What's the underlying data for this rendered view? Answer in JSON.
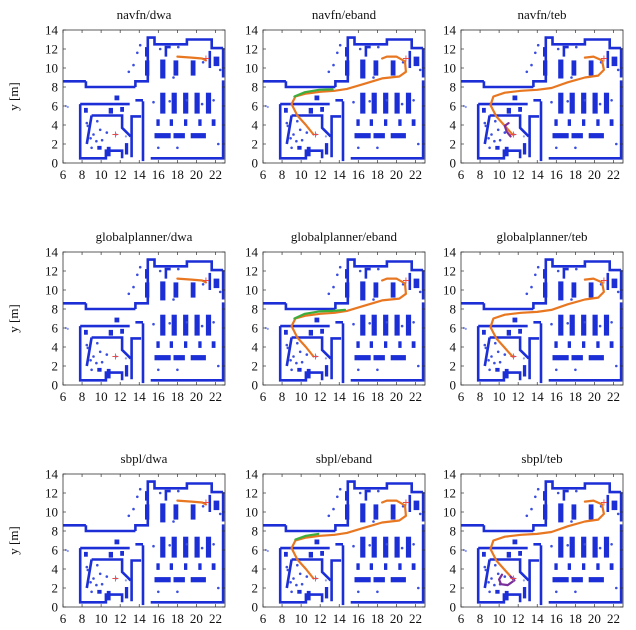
{
  "chart_data": [
    {
      "type": "line",
      "title": "navfn/dwa",
      "ylabel": "y [m]",
      "xlim": [
        6,
        23
      ],
      "ylim": [
        0,
        14
      ],
      "x_ticks": [
        "6",
        "8",
        "10",
        "12",
        "14",
        "16",
        "18",
        "20",
        "22"
      ],
      "y_ticks": [
        "0",
        "2",
        "4",
        "6",
        "8",
        "10",
        "12",
        "14"
      ],
      "start": [
        11.5,
        3.0
      ],
      "goal": [
        21.0,
        11.0
      ],
      "series": [
        {
          "color": "#e87722",
          "x": [
            18.0,
            19.5,
            20.6,
            21.0
          ],
          "y": [
            11.2,
            11.1,
            11.0,
            10.8
          ]
        }
      ]
    },
    {
      "type": "line",
      "title": "navfn/eband",
      "xlim": [
        6,
        23
      ],
      "ylim": [
        0,
        14
      ],
      "x_ticks": [
        "6",
        "8",
        "10",
        "12",
        "14",
        "16",
        "18",
        "20",
        "22"
      ],
      "y_ticks": [
        "0",
        "2",
        "4",
        "6",
        "8",
        "10",
        "12",
        "14"
      ],
      "start": [
        11.5,
        3.0
      ],
      "goal": [
        21.0,
        11.0
      ],
      "series": [
        {
          "color": "#e87722",
          "x": [
            11.3,
            10.5,
            9.6,
            9.0,
            9.4,
            10.5,
            12.0,
            13.5,
            14.8,
            16.5,
            18.5,
            20.3,
            21.0,
            20.9,
            20.0,
            19.0,
            18.5
          ],
          "y": [
            3.0,
            4.0,
            5.0,
            6.2,
            7.0,
            7.3,
            7.5,
            7.6,
            7.8,
            8.3,
            8.9,
            9.1,
            9.6,
            10.7,
            11.2,
            11.2,
            11.0
          ]
        },
        {
          "color": "#3cae3c",
          "x": [
            9.3,
            10.4,
            11.9,
            13.3
          ],
          "y": [
            7.0,
            7.45,
            7.7,
            7.75
          ]
        }
      ]
    },
    {
      "type": "line",
      "title": "navfn/teb",
      "xlim": [
        6,
        23
      ],
      "ylim": [
        0,
        14
      ],
      "x_ticks": [
        "6",
        "8",
        "10",
        "12",
        "14",
        "16",
        "18",
        "20",
        "22"
      ],
      "y_ticks": [
        "0",
        "2",
        "4",
        "6",
        "8",
        "10",
        "12",
        "14"
      ],
      "start": [
        11.5,
        3.0
      ],
      "goal": [
        21.0,
        11.0
      ],
      "series": [
        {
          "color": "#e87722",
          "x": [
            11.4,
            10.6,
            9.7,
            9.1,
            9.4,
            10.6,
            12.3,
            14.0,
            15.5,
            17.2,
            19.0,
            20.4,
            21.0,
            20.8,
            19.9,
            19.0
          ],
          "y": [
            3.0,
            3.9,
            4.9,
            6.1,
            7.0,
            7.4,
            7.6,
            7.7,
            7.9,
            8.5,
            9.0,
            9.2,
            9.8,
            10.8,
            11.2,
            11.1
          ]
        },
        {
          "color": "#7a2f9a",
          "x": [
            11.2,
            10.8,
            10.6,
            11.0
          ],
          "y": [
            2.8,
            3.3,
            3.9,
            4.2
          ]
        }
      ]
    },
    {
      "type": "line",
      "title": "globalplanner/dwa",
      "ylabel": "y [m]",
      "xlim": [
        6,
        23
      ],
      "ylim": [
        0,
        14
      ],
      "x_ticks": [
        "6",
        "8",
        "10",
        "12",
        "14",
        "16",
        "18",
        "20",
        "22"
      ],
      "y_ticks": [
        "0",
        "2",
        "4",
        "6",
        "8",
        "10",
        "12",
        "14"
      ],
      "start": [
        11.5,
        3.0
      ],
      "goal": [
        21.0,
        11.0
      ],
      "series": [
        {
          "color": "#e87722",
          "x": [
            18.0,
            19.5,
            20.6,
            21.0
          ],
          "y": [
            11.2,
            11.1,
            11.0,
            10.8
          ]
        }
      ]
    },
    {
      "type": "line",
      "title": "globalplanner/eband",
      "xlim": [
        6,
        23
      ],
      "ylim": [
        0,
        14
      ],
      "x_ticks": [
        "6",
        "8",
        "10",
        "12",
        "14",
        "16",
        "18",
        "20",
        "22"
      ],
      "y_ticks": [
        "0",
        "2",
        "4",
        "6",
        "8",
        "10",
        "12",
        "14"
      ],
      "start": [
        11.5,
        3.0
      ],
      "goal": [
        21.0,
        11.0
      ],
      "series": [
        {
          "color": "#e87722",
          "x": [
            11.3,
            10.5,
            9.6,
            9.0,
            9.4,
            10.5,
            12.0,
            13.5,
            14.8,
            16.5,
            18.5,
            20.3,
            21.0,
            20.9,
            20.0,
            19.0,
            18.5
          ],
          "y": [
            3.0,
            4.0,
            5.0,
            6.2,
            7.0,
            7.3,
            7.5,
            7.6,
            7.8,
            8.3,
            8.9,
            9.1,
            9.6,
            10.7,
            11.2,
            11.2,
            11.0
          ]
        },
        {
          "color": "#3cae3c",
          "x": [
            9.3,
            10.4,
            11.9,
            13.3,
            14.6
          ],
          "y": [
            7.0,
            7.5,
            7.75,
            7.8,
            7.9
          ]
        }
      ]
    },
    {
      "type": "line",
      "title": "globalplanner/teb",
      "xlim": [
        6,
        23
      ],
      "ylim": [
        0,
        14
      ],
      "x_ticks": [
        "6",
        "8",
        "10",
        "12",
        "14",
        "16",
        "18",
        "20",
        "22"
      ],
      "y_ticks": [
        "0",
        "2",
        "4",
        "6",
        "8",
        "10",
        "12",
        "14"
      ],
      "start": [
        11.5,
        3.0
      ],
      "goal": [
        21.0,
        11.0
      ],
      "series": [
        {
          "color": "#e87722",
          "x": [
            11.4,
            10.6,
            9.7,
            9.1,
            9.4,
            10.6,
            12.3,
            14.0,
            15.5,
            17.2,
            19.0,
            20.4,
            21.0,
            20.8,
            19.9,
            19.0
          ],
          "y": [
            3.0,
            3.9,
            4.9,
            6.1,
            7.0,
            7.4,
            7.6,
            7.7,
            7.9,
            8.5,
            9.0,
            9.2,
            9.8,
            10.8,
            11.2,
            11.1
          ]
        }
      ]
    },
    {
      "type": "line",
      "title": "sbpl/dwa",
      "ylabel": "y [m]",
      "xlim": [
        6,
        23
      ],
      "ylim": [
        0,
        14
      ],
      "x_ticks": [
        "6",
        "8",
        "10",
        "12",
        "14",
        "16",
        "18",
        "20",
        "22"
      ],
      "y_ticks": [
        "0",
        "2",
        "4",
        "6",
        "8",
        "10",
        "12",
        "14"
      ],
      "start": [
        11.5,
        3.0
      ],
      "goal": [
        21.0,
        11.0
      ],
      "series": [
        {
          "color": "#e87722",
          "x": [
            18.0,
            19.5,
            20.6,
            21.0
          ],
          "y": [
            11.2,
            11.1,
            11.0,
            10.8
          ]
        }
      ]
    },
    {
      "type": "line",
      "title": "sbpl/eband",
      "xlim": [
        6,
        23
      ],
      "ylim": [
        0,
        14
      ],
      "x_ticks": [
        "6",
        "8",
        "10",
        "12",
        "14",
        "16",
        "18",
        "20",
        "22"
      ],
      "y_ticks": [
        "0",
        "2",
        "4",
        "6",
        "8",
        "10",
        "12",
        "14"
      ],
      "start": [
        11.5,
        3.0
      ],
      "goal": [
        21.0,
        11.0
      ],
      "series": [
        {
          "color": "#e87722",
          "x": [
            11.3,
            10.5,
            9.6,
            9.0,
            9.4,
            10.5,
            12.0,
            13.5,
            14.8,
            16.5,
            18.5,
            20.3,
            21.0,
            20.9,
            20.0,
            19.0,
            18.5
          ],
          "y": [
            3.0,
            4.0,
            5.0,
            6.2,
            7.0,
            7.3,
            7.5,
            7.6,
            7.8,
            8.3,
            8.9,
            9.1,
            9.6,
            10.7,
            11.2,
            11.2,
            11.0
          ]
        },
        {
          "color": "#3cae3c",
          "x": [
            9.4,
            10.5,
            11.8
          ],
          "y": [
            7.1,
            7.5,
            7.7
          ]
        }
      ]
    },
    {
      "type": "line",
      "title": "sbpl/teb",
      "xlim": [
        6,
        23
      ],
      "ylim": [
        0,
        14
      ],
      "x_ticks": [
        "6",
        "8",
        "10",
        "12",
        "14",
        "16",
        "18",
        "20",
        "22"
      ],
      "y_ticks": [
        "0",
        "2",
        "4",
        "6",
        "8",
        "10",
        "12",
        "14"
      ],
      "start": [
        11.5,
        3.0
      ],
      "goal": [
        21.0,
        11.0
      ],
      "series": [
        {
          "color": "#e87722",
          "x": [
            11.4,
            10.6,
            9.7,
            9.1,
            9.4,
            10.6,
            12.3,
            14.0,
            15.5,
            17.2,
            19.0,
            20.4,
            21.0,
            20.8,
            19.9,
            19.0
          ],
          "y": [
            3.0,
            3.9,
            4.9,
            6.1,
            7.0,
            7.4,
            7.6,
            7.7,
            7.9,
            8.5,
            9.0,
            9.2,
            9.8,
            10.8,
            11.2,
            11.1
          ]
        },
        {
          "color": "#7a2f9a",
          "x": [
            10.3,
            10.0,
            10.2,
            10.9,
            11.6,
            11.2
          ],
          "y": [
            3.4,
            2.9,
            2.4,
            2.3,
            2.8,
            3.2
          ]
        }
      ]
    }
  ]
}
